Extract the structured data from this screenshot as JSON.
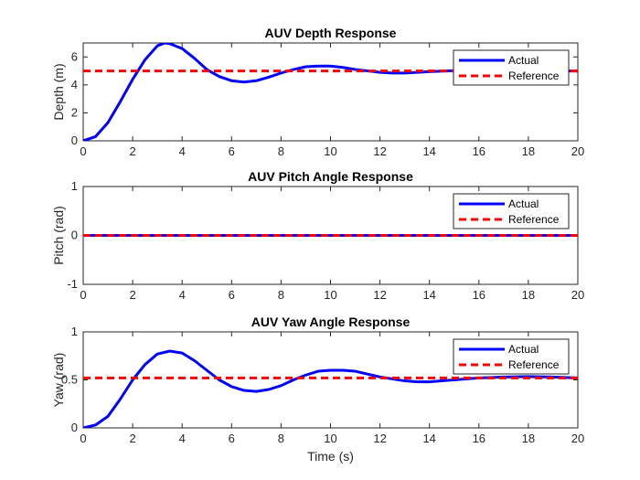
{
  "chart_data": [
    {
      "type": "line",
      "title": "AUV Depth Response",
      "xlabel": "",
      "ylabel": "Depth (m)",
      "xlim": [
        0,
        20
      ],
      "ylim": [
        0,
        7
      ],
      "xticks": [
        0,
        2,
        4,
        6,
        8,
        10,
        12,
        14,
        16,
        18,
        20
      ],
      "xtick_labels": [
        "0",
        "2",
        "4",
        "6",
        "8",
        "10",
        "12",
        "14",
        "16",
        "18",
        "20"
      ],
      "yticks": [
        0,
        2,
        4,
        6
      ],
      "ytick_labels": [
        "0",
        "2",
        "4",
        "6"
      ],
      "legend_position": "top-right",
      "series": [
        {
          "name": "Actual",
          "color": "#0000ff",
          "style": "solid",
          "x": [
            0,
            0.5,
            1,
            1.5,
            2,
            2.5,
            3,
            3.3,
            3.5,
            4,
            4.5,
            5,
            5.5,
            6,
            6.5,
            7,
            7.5,
            8,
            8.5,
            9,
            9.5,
            10,
            10.5,
            11,
            11.5,
            12,
            12.5,
            13,
            13.5,
            14,
            15,
            16,
            17,
            18,
            19,
            20
          ],
          "y": [
            0,
            0.3,
            1.3,
            2.8,
            4.4,
            5.8,
            6.8,
            7.0,
            6.95,
            6.6,
            5.9,
            5.1,
            4.6,
            4.3,
            4.2,
            4.3,
            4.55,
            4.85,
            5.1,
            5.3,
            5.35,
            5.35,
            5.25,
            5.1,
            5.0,
            4.9,
            4.85,
            4.85,
            4.9,
            4.95,
            5.02,
            5.03,
            5.01,
            4.99,
            5.0,
            5.0
          ]
        },
        {
          "name": "Reference",
          "color": "#ff0000",
          "style": "dashed",
          "x": [
            0,
            20
          ],
          "y": [
            5,
            5
          ]
        }
      ]
    },
    {
      "type": "line",
      "title": "AUV Pitch Angle Response",
      "xlabel": "",
      "ylabel": "Pitch (rad)",
      "xlim": [
        0,
        20
      ],
      "ylim": [
        -1,
        1
      ],
      "xticks": [
        0,
        2,
        4,
        6,
        8,
        10,
        12,
        14,
        16,
        18,
        20
      ],
      "xtick_labels": [
        "0",
        "2",
        "4",
        "6",
        "8",
        "10",
        "12",
        "14",
        "16",
        "18",
        "20"
      ],
      "yticks": [
        -1,
        0,
        1
      ],
      "ytick_labels": [
        "-1",
        "0",
        "1"
      ],
      "legend_position": "top-right",
      "series": [
        {
          "name": "Actual",
          "color": "#0000ff",
          "style": "solid",
          "x": [
            0,
            20
          ],
          "y": [
            0,
            0
          ]
        },
        {
          "name": "Reference",
          "color": "#ff0000",
          "style": "dashed",
          "x": [
            0,
            20
          ],
          "y": [
            0,
            0
          ]
        }
      ]
    },
    {
      "type": "line",
      "title": "AUV Yaw Angle Response",
      "xlabel": "Time (s)",
      "ylabel": "Yaw (rad)",
      "xlim": [
        0,
        20
      ],
      "ylim": [
        0,
        1
      ],
      "xticks": [
        0,
        2,
        4,
        6,
        8,
        10,
        12,
        14,
        16,
        18,
        20
      ],
      "xtick_labels": [
        "0",
        "2",
        "4",
        "6",
        "8",
        "10",
        "12",
        "14",
        "16",
        "18",
        "20"
      ],
      "yticks": [
        0,
        0.5,
        1
      ],
      "ytick_labels": [
        "0",
        "0.5",
        "1"
      ],
      "legend_position": "top-right",
      "series": [
        {
          "name": "Actual",
          "color": "#0000ff",
          "style": "solid",
          "x": [
            0,
            0.5,
            1,
            1.5,
            2,
            2.5,
            3,
            3.5,
            4,
            4.5,
            5,
            5.5,
            6,
            6.5,
            7,
            7.5,
            8,
            8.5,
            9,
            9.5,
            10,
            10.5,
            11,
            11.5,
            12,
            12.5,
            13,
            13.5,
            14,
            14.5,
            15,
            16,
            17,
            18,
            19,
            20
          ],
          "y": [
            0,
            0.03,
            0.12,
            0.3,
            0.5,
            0.66,
            0.77,
            0.8,
            0.78,
            0.7,
            0.6,
            0.5,
            0.43,
            0.39,
            0.38,
            0.4,
            0.44,
            0.5,
            0.55,
            0.59,
            0.6,
            0.6,
            0.59,
            0.56,
            0.53,
            0.51,
            0.49,
            0.48,
            0.48,
            0.49,
            0.5,
            0.52,
            0.53,
            0.535,
            0.53,
            0.52
          ]
        },
        {
          "name": "Reference",
          "color": "#ff0000",
          "style": "dashed",
          "x": [
            0,
            20
          ],
          "y": [
            0.52,
            0.52
          ]
        }
      ]
    }
  ]
}
